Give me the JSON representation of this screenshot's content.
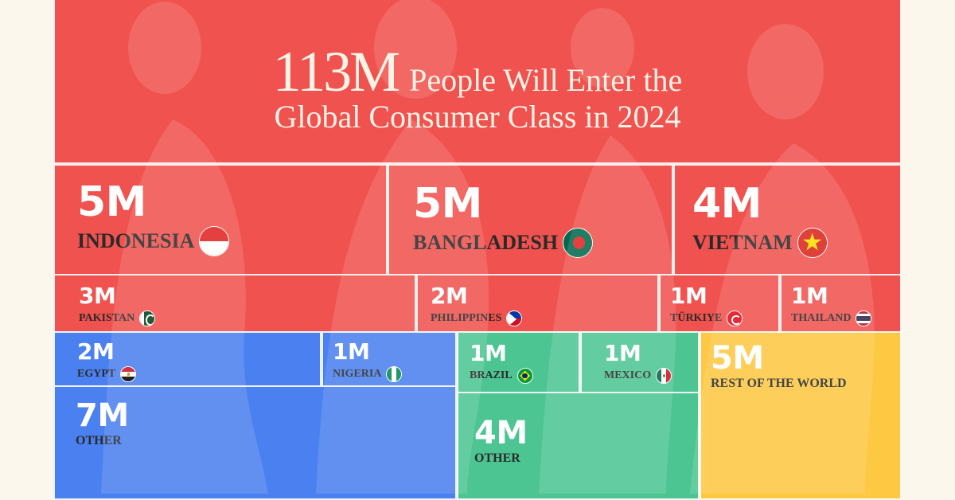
{
  "title": {
    "highlight": "113M",
    "line1": "People Will Enter the",
    "line2": "Global Consumer Class in 2024"
  },
  "colors": {
    "asia": "#f0524f",
    "africa": "#4a80ef",
    "latin_america": "#4cc592",
    "rest_of_world": "#fdc842",
    "background": "#fbf7ec"
  },
  "chart_data": {
    "type": "treemap",
    "title": "113M People Will Enter the Global Consumer Class in 2024",
    "unit": "M",
    "groups": [
      {
        "color": "#f0524f",
        "items": [
          {
            "label": "INDONESIA",
            "value": 5,
            "display": "5M",
            "flag": "indonesia-flag-icon"
          },
          {
            "label": "BANGLADESH",
            "value": 5,
            "display": "5M",
            "flag": "bangladesh-flag-icon"
          },
          {
            "label": "VIETNAM",
            "value": 4,
            "display": "4M",
            "flag": "vietnam-flag-icon"
          },
          {
            "label": "PAKISTAN",
            "value": 3,
            "display": "3M",
            "flag": "pakistan-flag-icon"
          },
          {
            "label": "PHILIPPINES",
            "value": 2,
            "display": "2M",
            "flag": "philippines-flag-icon"
          },
          {
            "label": "TÜRKIYE",
            "value": 1,
            "display": "1M",
            "flag": "turkiye-flag-icon"
          },
          {
            "label": "THAILAND",
            "value": 1,
            "display": "1M",
            "flag": "thailand-flag-icon"
          }
        ]
      },
      {
        "color": "#4a80ef",
        "items": [
          {
            "label": "EGYPT",
            "value": 2,
            "display": "2M",
            "flag": "egypt-flag-icon"
          },
          {
            "label": "NIGERIA",
            "value": 1,
            "display": "1M",
            "flag": "nigeria-flag-icon"
          },
          {
            "label": "OTHER",
            "value": 7,
            "display": "7M",
            "flag": ""
          }
        ]
      },
      {
        "color": "#4cc592",
        "items": [
          {
            "label": "BRAZIL",
            "value": 1,
            "display": "1M",
            "flag": "brazil-flag-icon"
          },
          {
            "label": "MEXICO",
            "value": 1,
            "display": "1M",
            "flag": "mexico-flag-icon"
          },
          {
            "label": "OTHER",
            "value": 4,
            "display": "4M",
            "flag": ""
          }
        ]
      },
      {
        "color": "#fdc842",
        "items": [
          {
            "label": "REST OF THE WORLD",
            "value": 5,
            "display": "5M",
            "flag": ""
          }
        ]
      }
    ]
  }
}
